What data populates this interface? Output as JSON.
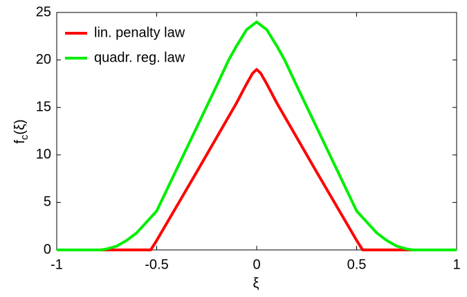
{
  "chart_data": {
    "type": "line",
    "xlabel": "ξ",
    "ylabel": {
      "base": "f",
      "subscript": "c",
      "arg": "(ξ)"
    },
    "xlim": [
      -1,
      1
    ],
    "xticks": [
      -1,
      -0.5,
      0,
      0.5,
      1
    ],
    "ylim": [
      0,
      25
    ],
    "yticks": [
      0,
      5,
      10,
      15,
      20,
      25
    ],
    "legend": "upper left",
    "series": [
      {
        "name": "lin. penalty law",
        "color": "#ff0000",
        "x": [
          -1,
          -0.53,
          -0.5,
          -0.3,
          -0.1,
          -0.05,
          -0.02,
          0,
          0.02,
          0.05,
          0.1,
          0.3,
          0.5,
          0.53,
          1
        ],
        "values": [
          0,
          0,
          1,
          8.2,
          15.5,
          17.5,
          18.6,
          19,
          18.6,
          17.5,
          15.5,
          8.2,
          1,
          0,
          0
        ]
      },
      {
        "name": "quadr. reg. law",
        "color": "#00ee00",
        "x": [
          -1,
          -0.78,
          -0.75,
          -0.7,
          -0.65,
          -0.6,
          -0.5,
          -0.4,
          -0.3,
          -0.2,
          -0.14,
          -0.1,
          -0.05,
          0,
          0.05,
          0.1,
          0.14,
          0.2,
          0.3,
          0.4,
          0.5,
          0.6,
          0.65,
          0.7,
          0.75,
          0.78,
          1
        ],
        "values": [
          0,
          0,
          0.1,
          0.4,
          1,
          1.8,
          4.1,
          8.5,
          12.9,
          17.3,
          20,
          21.5,
          23.2,
          24,
          23.2,
          21.5,
          20,
          17.3,
          12.9,
          8.5,
          4.1,
          1.8,
          1,
          0.4,
          0.1,
          0,
          0
        ]
      }
    ]
  }
}
